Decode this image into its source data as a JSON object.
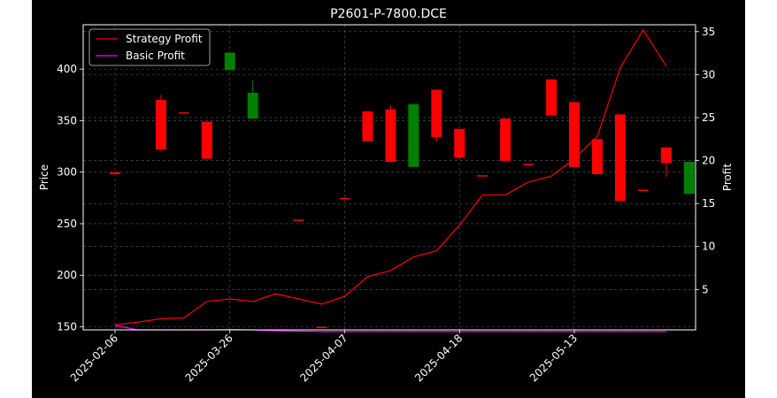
{
  "chart_data": {
    "type": "candlestick+line",
    "title": "P2601-P-7800.DCE",
    "ylabel_left": "Price",
    "ylabel_right": "Profit",
    "ylim_left": [
      147,
      443
    ],
    "ylim_right": [
      0.3,
      35.8
    ],
    "yticks_left": [
      150,
      200,
      250,
      300,
      350,
      400
    ],
    "yticks_right": [
      5,
      10,
      15,
      20,
      25,
      30,
      35
    ],
    "x_tick_labels": [
      {
        "index": 0,
        "label": "2025-02-06"
      },
      {
        "index": 5,
        "label": "2025-03-26"
      },
      {
        "index": 10,
        "label": "2025-04-07"
      },
      {
        "index": 15,
        "label": "2025-04-18"
      },
      {
        "index": 20,
        "label": "2025-05-13"
      }
    ],
    "grid": true,
    "legend_position": "top-left",
    "colors": {
      "up": "#008000",
      "down": "#ff0000",
      "strategy": "#ff0000",
      "basic": "#ff00ff",
      "background": "#000000",
      "text": "#ffffff"
    },
    "candles": [
      {
        "o": 300,
        "c": 298,
        "h": 300,
        "l": 298
      },
      {
        "o": 0,
        "c": 0,
        "h": 0,
        "l": 0,
        "missing": true
      },
      {
        "o": 370,
        "c": 322,
        "h": 375,
        "l": 320
      },
      {
        "o": 358,
        "c": 357,
        "h": 358,
        "l": 357
      },
      {
        "o": 349,
        "c": 313,
        "h": 349,
        "l": 313
      },
      {
        "o": 399,
        "c": 416,
        "h": 416,
        "l": 399
      },
      {
        "o": 352,
        "c": 377,
        "h": 389,
        "l": 352
      },
      {
        "o": 0,
        "c": 0,
        "h": 0,
        "l": 0,
        "missing": true
      },
      {
        "o": 254,
        "c": 253,
        "h": 254,
        "l": 253
      },
      {
        "o": 150,
        "c": 149,
        "h": 150,
        "l": 149
      },
      {
        "o": 275,
        "c": 274,
        "h": 275,
        "l": 274
      },
      {
        "o": 359,
        "c": 330,
        "h": 359,
        "l": 330
      },
      {
        "o": 361,
        "c": 310,
        "h": 365,
        "l": 310
      },
      {
        "o": 305,
        "c": 366,
        "h": 366,
        "l": 305
      },
      {
        "o": 380,
        "c": 334,
        "h": 380,
        "l": 330
      },
      {
        "o": 342,
        "c": 314,
        "h": 342,
        "l": 314
      },
      {
        "o": 297,
        "c": 296,
        "h": 297,
        "l": 296
      },
      {
        "o": 352,
        "c": 311,
        "h": 352,
        "l": 311
      },
      {
        "o": 308,
        "c": 307,
        "h": 308,
        "l": 307
      },
      {
        "o": 390,
        "c": 355,
        "h": 390,
        "l": 355
      },
      {
        "o": 368,
        "c": 305,
        "h": 368,
        "l": 305
      },
      {
        "o": 332,
        "c": 298,
        "h": 332,
        "l": 298
      },
      {
        "o": 356,
        "c": 272,
        "h": 356,
        "l": 272
      },
      {
        "o": 283,
        "c": 282,
        "h": 283,
        "l": 282
      },
      {
        "o": 324,
        "c": 309,
        "h": 324,
        "l": 295
      },
      {
        "o": 279,
        "c": 310,
        "h": 310,
        "l": 279
      }
    ],
    "series": [
      {
        "name": "Strategy Profit",
        "axis": "right",
        "values": [
          0.9,
          1.2,
          1.6,
          1.7,
          3.6,
          3.9,
          3.6,
          4.5,
          3.9,
          3.3,
          4.2,
          6.5,
          7.2,
          8.8,
          9.5,
          12.5,
          16.0,
          16.0,
          17.5,
          18.2,
          20.2,
          22.8,
          30.8,
          35.2,
          31.0
        ]
      },
      {
        "name": "Basic Profit",
        "axis": "right",
        "values": [
          0.8,
          0.3,
          0.3,
          0.3,
          0.3,
          0.35,
          0.3,
          0.2,
          0.15,
          0.1,
          0.1,
          0.1,
          0.1,
          0.1,
          0.1,
          0.1,
          0.1,
          0.1,
          0.1,
          0.1,
          0.1,
          0.1,
          0.1,
          0.1,
          0.1
        ]
      }
    ]
  }
}
